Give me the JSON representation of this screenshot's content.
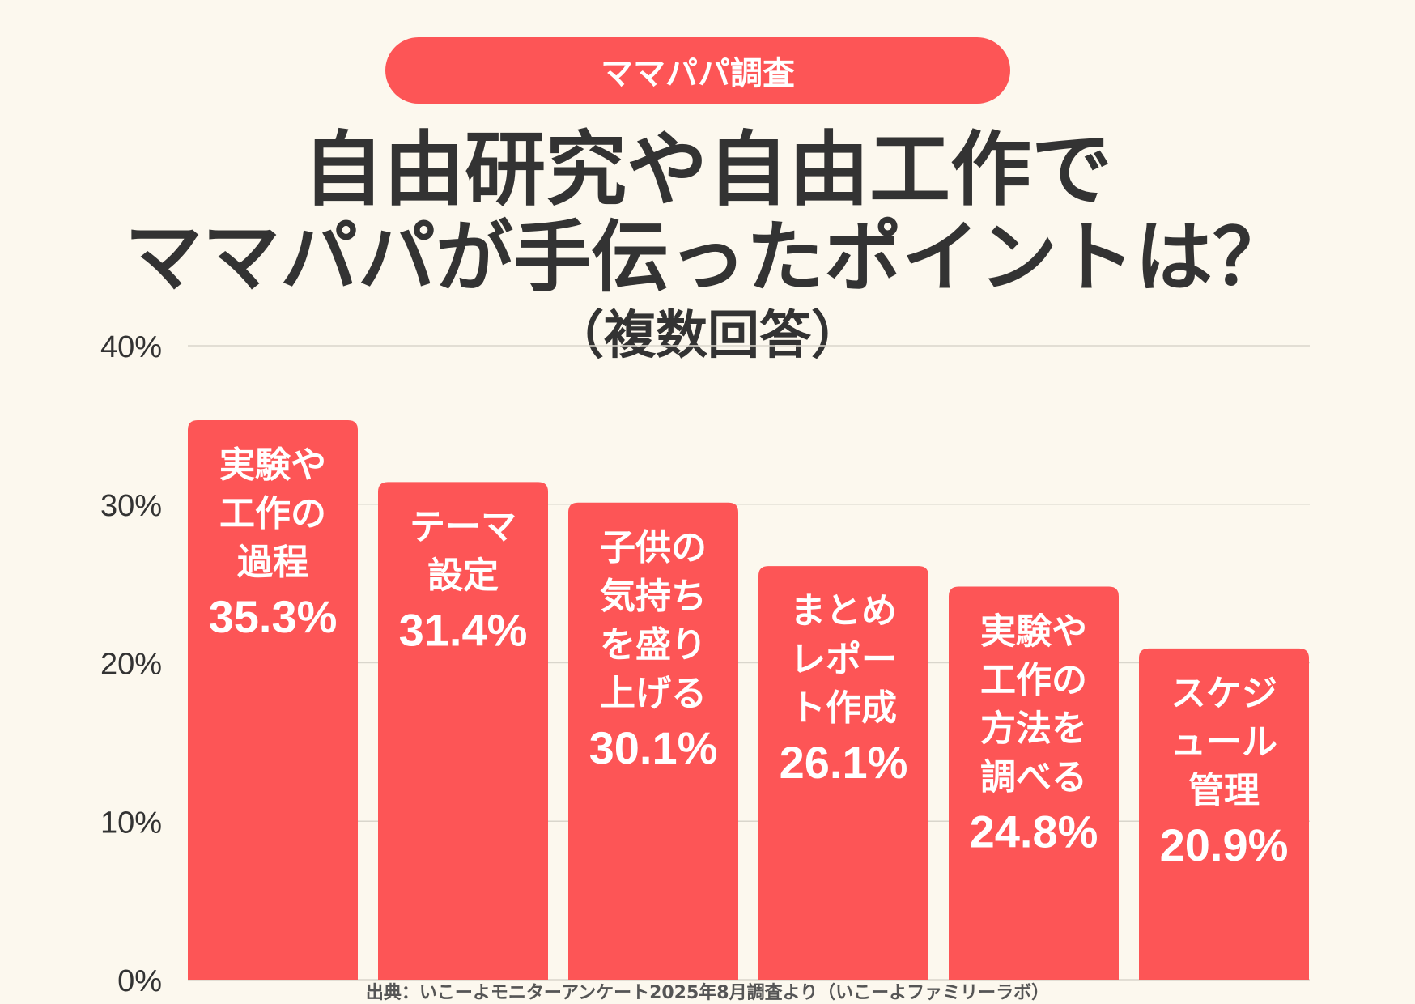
{
  "badge": "ママパパ調査",
  "title_lines": [
    "自由研究や自由工作で",
    "ママパパが手伝ったポイントは？",
    "（複数回答）"
  ],
  "source": "出典：いこーよモニターアンケート2025年8月調査より（いこーよファミリーラボ）",
  "colors": {
    "bar": "#fd5556",
    "background": "#fcf8ee",
    "text": "#333333",
    "grid": "#d9d6cc"
  },
  "chart_data": {
    "type": "bar",
    "categories": [
      [
        "実験や",
        "工作の",
        "過程"
      ],
      [
        "テーマ",
        "設定"
      ],
      [
        "子供の",
        "気持ち",
        "を盛り",
        "上げる"
      ],
      [
        "まとめ",
        "レポー",
        "ト作成"
      ],
      [
        "実験や",
        "工作の",
        "方法を",
        "調べる"
      ],
      [
        "スケジ",
        "ュール",
        "管理"
      ]
    ],
    "values": [
      35.3,
      31.4,
      30.1,
      26.1,
      24.8,
      20.9
    ],
    "value_labels": [
      "35.3%",
      "31.4%",
      "30.1%",
      "26.1%",
      "24.8%",
      "20.9%"
    ],
    "yticks": [
      "0%",
      "10%",
      "20%",
      "30%",
      "40%"
    ],
    "ylim": [
      0,
      40
    ],
    "grid": true
  }
}
